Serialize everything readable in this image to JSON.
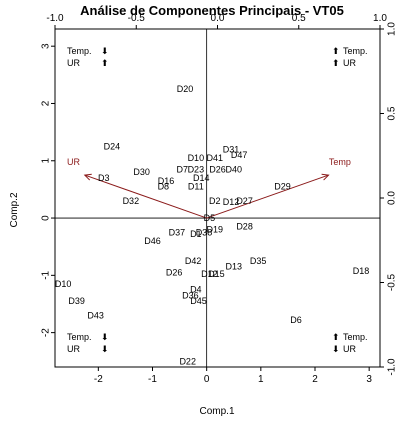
{
  "chart_data": {
    "type": "scatter",
    "title": "Análise de Componentes Principais - VT05",
    "xlabel": "Comp.1",
    "ylabel": "Comp.2",
    "xlim": [
      -2.8,
      3.2
    ],
    "ylim": [
      -2.6,
      3.3
    ],
    "x_ticks": [
      -2,
      -1,
      0,
      1,
      2,
      3
    ],
    "y_ticks": [
      -2,
      -1,
      0,
      1,
      2,
      3
    ],
    "top_axis": {
      "lim": [
        -1.0,
        1.0
      ],
      "ticks": [
        -1.0,
        -0.5,
        0.0,
        0.5,
        1.0
      ]
    },
    "right_axis": {
      "lim": [
        -1.0,
        1.0
      ],
      "ticks": [
        -1.0,
        -0.5,
        0.0,
        0.5,
        1.0
      ]
    },
    "tick_labels": {
      "bottom": [
        "-2",
        "-1",
        "0",
        "1",
        "2",
        "3"
      ],
      "left": [
        "-2",
        "-1",
        "0",
        "1",
        "2",
        "3"
      ],
      "top": [
        "-1.0",
        "-0.5",
        "0.0",
        "0.5",
        "1.0"
      ],
      "right": [
        "-1.0",
        "-0.5",
        "0.0",
        "0.5",
        "1.0"
      ]
    },
    "reference_lines": {
      "x": 0,
      "y": 0
    },
    "points": [
      {
        "label": "D20",
        "x": -0.4,
        "y": 2.25
      },
      {
        "label": "D24",
        "x": -1.75,
        "y": 1.25
      },
      {
        "label": "D31",
        "x": 0.45,
        "y": 1.2
      },
      {
        "label": "D47",
        "x": 0.6,
        "y": 1.1
      },
      {
        "label": "D10",
        "x": -0.2,
        "y": 1.05
      },
      {
        "label": "D41",
        "x": 0.15,
        "y": 1.05
      },
      {
        "label": "D30",
        "x": -1.2,
        "y": 0.8
      },
      {
        "label": "D7",
        "x": -0.45,
        "y": 0.85
      },
      {
        "label": "D23",
        "x": -0.2,
        "y": 0.85
      },
      {
        "label": "D26",
        "x": 0.2,
        "y": 0.85
      },
      {
        "label": "D40",
        "x": 0.5,
        "y": 0.85
      },
      {
        "label": "D3",
        "x": -1.9,
        "y": 0.7
      },
      {
        "label": "D16",
        "x": -0.75,
        "y": 0.65
      },
      {
        "label": "D14",
        "x": -0.1,
        "y": 0.7
      },
      {
        "label": "D8",
        "x": -0.8,
        "y": 0.55
      },
      {
        "label": "D11",
        "x": -0.2,
        "y": 0.55
      },
      {
        "label": "D29",
        "x": 1.4,
        "y": 0.55
      },
      {
        "label": "D32",
        "x": -1.4,
        "y": 0.3
      },
      {
        "label": "D2",
        "x": 0.15,
        "y": 0.3
      },
      {
        "label": "D12",
        "x": 0.45,
        "y": 0.28
      },
      {
        "label": "D27",
        "x": 0.7,
        "y": 0.3
      },
      {
        "label": "D5",
        "x": 0.05,
        "y": 0.0
      },
      {
        "label": "D28",
        "x": 0.7,
        "y": -0.15
      },
      {
        "label": "D19",
        "x": 0.15,
        "y": -0.2
      },
      {
        "label": "D37",
        "x": -0.55,
        "y": -0.25
      },
      {
        "label": "D1",
        "x": -0.2,
        "y": -0.28
      },
      {
        "label": "D38",
        "x": -0.05,
        "y": -0.25
      },
      {
        "label": "D46",
        "x": -1.0,
        "y": -0.4
      },
      {
        "label": "D42",
        "x": -0.25,
        "y": -0.75
      },
      {
        "label": "D35",
        "x": 0.95,
        "y": -0.75
      },
      {
        "label": "D13",
        "x": 0.5,
        "y": -0.85
      },
      {
        "label": "D26",
        "x": -0.6,
        "y": -0.95
      },
      {
        "label": "D12",
        "x": 0.05,
        "y": -0.98
      },
      {
        "label": "D15",
        "x": 0.18,
        "y": -0.98
      },
      {
        "label": "D18",
        "x": 2.85,
        "y": -0.92
      },
      {
        "label": "D10",
        "x": -2.65,
        "y": -1.15
      },
      {
        "label": "D4",
        "x": -0.2,
        "y": -1.25
      },
      {
        "label": "D36",
        "x": -0.3,
        "y": -1.35
      },
      {
        "label": "D39",
        "x": -2.4,
        "y": -1.45
      },
      {
        "label": "D45",
        "x": -0.15,
        "y": -1.45
      },
      {
        "label": "D43",
        "x": -2.05,
        "y": -1.7
      },
      {
        "label": "D6",
        "x": 1.65,
        "y": -1.78
      },
      {
        "label": "D22",
        "x": -0.35,
        "y": -2.5
      }
    ],
    "loadings": [
      {
        "label": "Temp",
        "x": 0.75,
        "y": 0.25
      },
      {
        "label": "UR",
        "x": -0.75,
        "y": 0.25
      }
    ],
    "corner_legends": [
      {
        "position": "top-left",
        "lines": [
          {
            "text": "Temp.",
            "dir": "down"
          },
          {
            "text": "UR",
            "dir": "up"
          }
        ]
      },
      {
        "position": "top-right",
        "lines": [
          {
            "text": "Temp.",
            "dir": "up"
          },
          {
            "text": "UR",
            "dir": "up"
          }
        ]
      },
      {
        "position": "bottom-left",
        "lines": [
          {
            "text": "Temp.",
            "dir": "down"
          },
          {
            "text": "UR",
            "dir": "down"
          }
        ]
      },
      {
        "position": "bottom-right",
        "lines": [
          {
            "text": "Temp.",
            "dir": "up"
          },
          {
            "text": "UR",
            "dir": "down"
          }
        ]
      }
    ],
    "colors": {
      "arrow": "#8b1a1a",
      "text": "#000000"
    }
  }
}
